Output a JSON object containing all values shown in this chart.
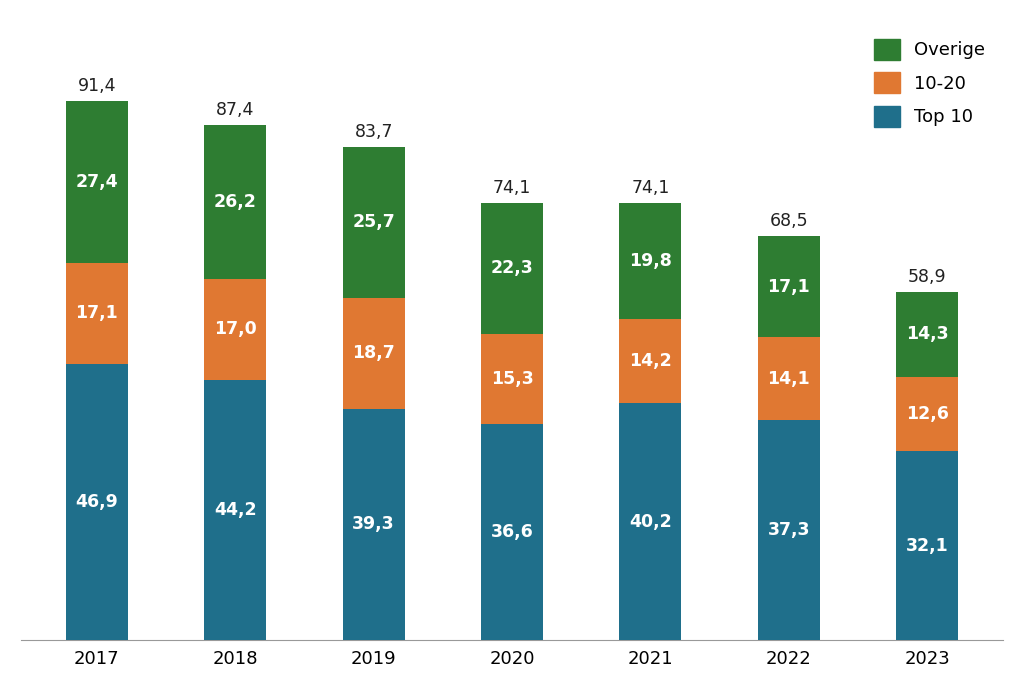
{
  "years": [
    "2017",
    "2018",
    "2019",
    "2020",
    "2021",
    "2022",
    "2023"
  ],
  "top10": [
    46.9,
    44.2,
    39.3,
    36.6,
    40.2,
    37.3,
    32.1
  ],
  "mid": [
    17.1,
    17.0,
    18.7,
    15.3,
    14.2,
    14.1,
    12.6
  ],
  "other": [
    27.4,
    26.2,
    25.7,
    22.3,
    19.8,
    17.1,
    14.3
  ],
  "totals": [
    91.4,
    87.4,
    83.7,
    74.1,
    74.1,
    68.5,
    58.9
  ],
  "color_top10": "#1f6f8b",
  "color_mid": "#e07832",
  "color_other": "#2e7d32",
  "bar_width": 0.45,
  "label_fontsize": 12.5,
  "total_fontsize": 12.5,
  "tick_fontsize": 13,
  "legend_fontsize": 13,
  "ylim_max": 105
}
